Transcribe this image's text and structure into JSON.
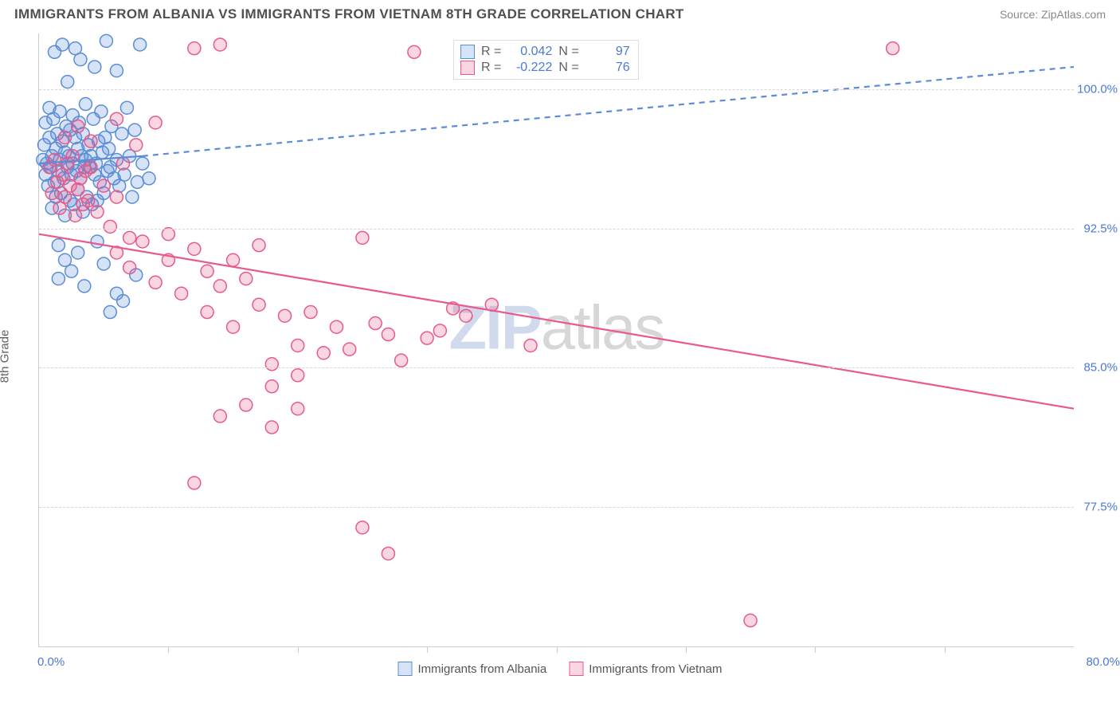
{
  "header": {
    "title": "IMMIGRANTS FROM ALBANIA VS IMMIGRANTS FROM VIETNAM 8TH GRADE CORRELATION CHART",
    "source": "Source: ZipAtlas.com"
  },
  "ylabel": "8th Grade",
  "watermark": {
    "part1": "ZIP",
    "part2": "atlas"
  },
  "chart": {
    "type": "scatter",
    "background_color": "#ffffff",
    "grid_color": "#d6d6d6",
    "axis_color": "#cccccc",
    "tick_label_color": "#4a79d6",
    "xlim": [
      0,
      80
    ],
    "ylim": [
      70,
      103
    ],
    "ytick_values": [
      77.5,
      85.0,
      92.5,
      100.0
    ],
    "ytick_labels": [
      "77.5%",
      "85.0%",
      "92.5%",
      "100.0%"
    ],
    "xtick_values": [
      10,
      20,
      30,
      40,
      50,
      60,
      70
    ],
    "xaxis_left_label": "0.0%",
    "xaxis_right_label": "80.0%",
    "marker_radius": 8,
    "marker_stroke_width": 1.5,
    "marker_fill_opacity": 0.25,
    "trend_line_width": 2.2,
    "trend_dash": "7,6"
  },
  "series": [
    {
      "name": "Immigrants from Albania",
      "color": "#5b8dd6",
      "fill": "#5b8dd6",
      "R": "0.042",
      "N": "97",
      "trend_solid": {
        "x1": 0,
        "y1": 96.0,
        "x2": 8,
        "y2": 96.4
      },
      "trend_dash": {
        "x1": 8,
        "y1": 96.4,
        "x2": 80,
        "y2": 101.2
      },
      "points": [
        [
          0.3,
          96.2
        ],
        [
          0.4,
          97.0
        ],
        [
          0.5,
          95.4
        ],
        [
          0.5,
          98.2
        ],
        [
          0.6,
          96.0
        ],
        [
          0.7,
          94.8
        ],
        [
          0.8,
          97.4
        ],
        [
          0.8,
          99.0
        ],
        [
          0.9,
          95.8
        ],
        [
          1.0,
          96.4
        ],
        [
          1.0,
          93.6
        ],
        [
          1.1,
          98.4
        ],
        [
          1.2,
          95.0
        ],
        [
          1.2,
          102.0
        ],
        [
          1.3,
          96.8
        ],
        [
          1.3,
          94.2
        ],
        [
          1.4,
          97.6
        ],
        [
          1.5,
          95.6
        ],
        [
          1.5,
          91.6
        ],
        [
          1.6,
          98.8
        ],
        [
          1.6,
          96.2
        ],
        [
          1.7,
          94.4
        ],
        [
          1.8,
          97.2
        ],
        [
          1.8,
          102.4
        ],
        [
          1.9,
          95.2
        ],
        [
          2.0,
          96.6
        ],
        [
          2.0,
          93.2
        ],
        [
          2.1,
          98.0
        ],
        [
          2.2,
          95.8
        ],
        [
          2.2,
          100.4
        ],
        [
          2.3,
          96.4
        ],
        [
          2.4,
          94.0
        ],
        [
          2.4,
          97.8
        ],
        [
          2.5,
          95.4
        ],
        [
          2.6,
          98.6
        ],
        [
          2.6,
          96.0
        ],
        [
          2.7,
          93.8
        ],
        [
          2.8,
          97.4
        ],
        [
          2.8,
          102.2
        ],
        [
          2.9,
          95.6
        ],
        [
          3.0,
          96.8
        ],
        [
          3.0,
          94.6
        ],
        [
          3.1,
          98.2
        ],
        [
          3.2,
          95.2
        ],
        [
          3.2,
          101.6
        ],
        [
          3.3,
          96.4
        ],
        [
          3.4,
          93.4
        ],
        [
          3.4,
          97.6
        ],
        [
          3.5,
          95.8
        ],
        [
          3.6,
          99.2
        ],
        [
          3.6,
          96.2
        ],
        [
          3.7,
          94.2
        ],
        [
          3.8,
          97.0
        ],
        [
          3.9,
          95.8
        ],
        [
          4.0,
          96.4
        ],
        [
          4.1,
          93.8
        ],
        [
          4.2,
          98.4
        ],
        [
          4.3,
          95.4
        ],
        [
          4.3,
          101.2
        ],
        [
          4.4,
          96.0
        ],
        [
          4.5,
          94.0
        ],
        [
          4.6,
          97.2
        ],
        [
          4.7,
          95.0
        ],
        [
          4.8,
          98.8
        ],
        [
          4.9,
          96.6
        ],
        [
          5.0,
          94.4
        ],
        [
          5.1,
          97.4
        ],
        [
          5.2,
          102.6
        ],
        [
          5.3,
          95.6
        ],
        [
          5.4,
          96.8
        ],
        [
          5.5,
          95.8
        ],
        [
          5.6,
          98.0
        ],
        [
          5.8,
          95.2
        ],
        [
          6.0,
          101.0
        ],
        [
          6.0,
          96.2
        ],
        [
          6.2,
          94.8
        ],
        [
          6.4,
          97.6
        ],
        [
          6.6,
          95.4
        ],
        [
          6.8,
          99.0
        ],
        [
          7.0,
          96.4
        ],
        [
          7.2,
          94.2
        ],
        [
          7.4,
          97.8
        ],
        [
          7.6,
          95.0
        ],
        [
          7.8,
          102.4
        ],
        [
          8.0,
          96.0
        ],
        [
          4.5,
          91.8
        ],
        [
          2.0,
          90.8
        ],
        [
          3.0,
          91.2
        ],
        [
          1.5,
          89.8
        ],
        [
          2.5,
          90.2
        ],
        [
          3.5,
          89.4
        ],
        [
          5.0,
          90.6
        ],
        [
          6.0,
          89.0
        ],
        [
          7.5,
          90.0
        ],
        [
          5.5,
          88.0
        ],
        [
          6.5,
          88.6
        ],
        [
          8.5,
          95.2
        ]
      ]
    },
    {
      "name": "Immigrants from Vietnam",
      "color": "#e85a8a",
      "fill": "#f5a8c0",
      "R": "-0.222",
      "N": "76",
      "trend_solid": {
        "x1": 0,
        "y1": 92.2,
        "x2": 80,
        "y2": 82.8
      },
      "trend_dash": null,
      "points": [
        [
          0.8,
          95.8
        ],
        [
          1.0,
          94.4
        ],
        [
          1.2,
          96.2
        ],
        [
          1.4,
          95.0
        ],
        [
          1.6,
          93.6
        ],
        [
          1.8,
          95.4
        ],
        [
          2.0,
          94.2
        ],
        [
          2.2,
          96.0
        ],
        [
          2.4,
          94.8
        ],
        [
          2.6,
          96.4
        ],
        [
          2.8,
          93.2
        ],
        [
          3.0,
          94.6
        ],
        [
          3.2,
          95.2
        ],
        [
          3.4,
          93.8
        ],
        [
          3.6,
          95.6
        ],
        [
          3.8,
          94.0
        ],
        [
          4.0,
          95.8
        ],
        [
          4.5,
          93.4
        ],
        [
          5.0,
          94.8
        ],
        [
          5.5,
          92.6
        ],
        [
          6.0,
          94.2
        ],
        [
          6.5,
          96.0
        ],
        [
          7.0,
          92.0
        ],
        [
          2.0,
          97.4
        ],
        [
          3.0,
          98.0
        ],
        [
          4.0,
          97.2
        ],
        [
          6.0,
          98.4
        ],
        [
          7.5,
          97.0
        ],
        [
          9.0,
          98.2
        ],
        [
          6.0,
          91.2
        ],
        [
          7.0,
          90.4
        ],
        [
          8.0,
          91.8
        ],
        [
          9.0,
          89.6
        ],
        [
          10.0,
          90.8
        ],
        [
          10.0,
          92.2
        ],
        [
          11.0,
          89.0
        ],
        [
          12.0,
          91.4
        ],
        [
          12.0,
          102.2
        ],
        [
          13.0,
          88.0
        ],
        [
          13.0,
          90.2
        ],
        [
          14.0,
          89.4
        ],
        [
          14.0,
          102.4
        ],
        [
          15.0,
          87.2
        ],
        [
          15.0,
          90.8
        ],
        [
          16.0,
          89.8
        ],
        [
          17.0,
          88.4
        ],
        [
          17.0,
          91.6
        ],
        [
          18.0,
          85.2
        ],
        [
          18.0,
          84.0
        ],
        [
          19.0,
          87.8
        ],
        [
          20.0,
          86.2
        ],
        [
          20.0,
          84.6
        ],
        [
          21.0,
          88.0
        ],
        [
          22.0,
          85.8
        ],
        [
          23.0,
          87.2
        ],
        [
          24.0,
          86.0
        ],
        [
          25.0,
          92.0
        ],
        [
          26.0,
          87.4
        ],
        [
          27.0,
          86.8
        ],
        [
          28.0,
          85.4
        ],
        [
          29.0,
          102.0
        ],
        [
          30.0,
          86.6
        ],
        [
          31.0,
          87.0
        ],
        [
          32.0,
          88.2
        ],
        [
          14.0,
          82.4
        ],
        [
          16.0,
          83.0
        ],
        [
          18.0,
          81.8
        ],
        [
          20.0,
          82.8
        ],
        [
          12.0,
          78.8
        ],
        [
          25.0,
          76.4
        ],
        [
          27.0,
          75.0
        ],
        [
          33.0,
          87.8
        ],
        [
          35.0,
          88.4
        ],
        [
          38.0,
          86.2
        ],
        [
          55.0,
          71.4
        ],
        [
          66.0,
          102.2
        ]
      ]
    }
  ],
  "legend_bottom": [
    {
      "label": "Immigrants from Albania",
      "color": "#5b8dd6"
    },
    {
      "label": "Immigrants from Vietnam",
      "color": "#e85a8a"
    }
  ]
}
